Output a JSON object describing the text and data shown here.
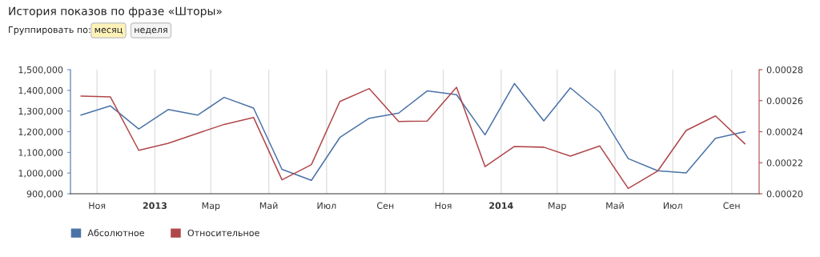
{
  "chart_data": {
    "type": "line",
    "title": "История показов по фразе «Шторы»",
    "annotations": [
      "Группировать по:",
      "месяц",
      "неделя"
    ],
    "x": [
      "2012-10-15",
      "2012-11-15",
      "2012-12-15",
      "2013-01-15",
      "2013-02-15",
      "2013-03-15",
      "2013-04-15",
      "2013-05-15",
      "2013-06-15",
      "2013-07-15",
      "2013-08-15",
      "2013-09-15",
      "2013-10-15",
      "2013-11-15",
      "2013-12-15",
      "2014-01-15",
      "2014-02-15",
      "2014-03-15",
      "2014-04-15",
      "2014-05-15",
      "2014-06-15",
      "2014-07-15",
      "2014-08-15",
      "2014-09-15"
    ],
    "series": [
      {
        "name": "Абсолютное",
        "color": "#4a72a8",
        "values": [
          1280000,
          1325000,
          1213000,
          1307000,
          1280000,
          1366000,
          1314000,
          1018000,
          965000,
          1172000,
          1265000,
          1290000,
          1397000,
          1379000,
          1185000,
          1433000,
          1252000,
          1412000,
          1294000,
          1070000,
          1011000,
          1001000,
          1168000,
          1200000
        ]
      },
      {
        "name": "Относительное",
        "color": "#b0474a",
        "axis": "y2",
        "values": [
          0.000263,
          0.0002625,
          0.000228,
          0.0002325,
          0.000239,
          0.0002447,
          0.0002492,
          0.000209,
          0.0002188,
          0.0002595,
          0.0002678,
          0.0002466,
          0.0002468,
          0.0002686,
          0.0002175,
          0.0002305,
          0.00023,
          0.0002243,
          0.0002308,
          0.0002034,
          0.0002146,
          0.0002408,
          0.0002502,
          0.0002322
        ]
      }
    ],
    "xlim": [
      "2012-10-04",
      "2014-09-30"
    ],
    "xticks": [
      {
        "value": "2012-11-01",
        "label": "Ноя"
      },
      {
        "value": "2013-01-01",
        "label": "2013"
      },
      {
        "value": "2013-03-01",
        "label": "Мар"
      },
      {
        "value": "2013-05-01",
        "label": "Май"
      },
      {
        "value": "2013-07-01",
        "label": "Июл"
      },
      {
        "value": "2013-09-01",
        "label": "Сен"
      },
      {
        "value": "2013-11-01",
        "label": "Ноя"
      },
      {
        "value": "2014-01-01",
        "label": "2014"
      },
      {
        "value": "2014-03-01",
        "label": "Мар"
      },
      {
        "value": "2014-05-01",
        "label": "Май"
      },
      {
        "value": "2014-07-01",
        "label": "Июл"
      },
      {
        "value": "2014-09-01",
        "label": "Сен"
      }
    ],
    "ylim": [
      900000,
      1500000
    ],
    "yticks": [
      {
        "value": 900000,
        "label": "900,000"
      },
      {
        "value": 1000000,
        "label": "1,000,000"
      },
      {
        "value": 1100000,
        "label": "1,100,000"
      },
      {
        "value": 1200000,
        "label": "1,200,000"
      },
      {
        "value": 1300000,
        "label": "1,300,000"
      },
      {
        "value": 1400000,
        "label": "1,400,000"
      },
      {
        "value": 1500000,
        "label": "1,500,000"
      }
    ],
    "y2lim": [
      0.0002,
      0.00028
    ],
    "y2ticks": [
      {
        "value": 0.0002,
        "label": "0.00020"
      },
      {
        "value": 0.00022,
        "label": "0.00022"
      },
      {
        "value": 0.00024,
        "label": "0.00024"
      },
      {
        "value": 0.00026,
        "label": "0.00026"
      },
      {
        "value": 0.00028,
        "label": "0.00028"
      }
    ],
    "grid": "x",
    "legend": "bottom left",
    "marker": "none",
    "line_style": "solid"
  }
}
